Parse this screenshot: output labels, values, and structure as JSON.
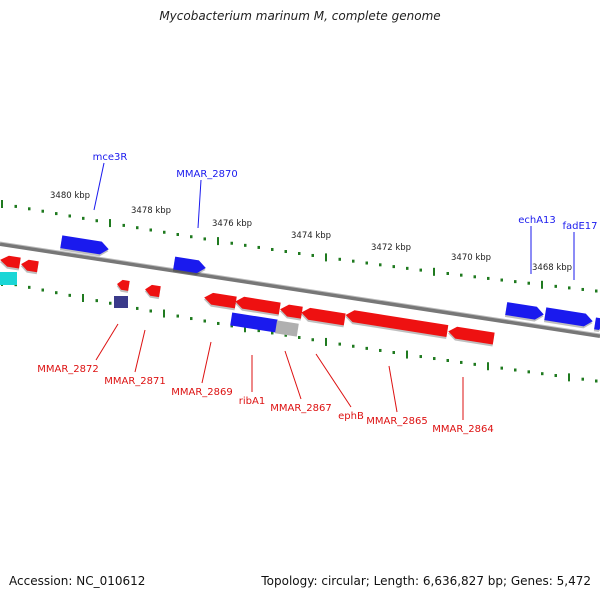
{
  "header": {
    "title": "Mycobacterium marinum M, complete genome"
  },
  "footer": {
    "accession": "Accession: NC_010612",
    "topology": "Topology: circular; Length: 6,636,827 bp; Genes: 5,472"
  },
  "colors": {
    "forward": "#1a1aee",
    "reverse": "#ee1111",
    "backbone": "#777777",
    "tick": "#1f7a1f",
    "label_forward": "#1a1aee",
    "label_reverse": "#dd1111"
  },
  "ruler": {
    "labels": [
      "3480 kbp",
      "3478 kbp",
      "3476 kbp",
      "3474 kbp",
      "3472 kbp",
      "3470 kbp",
      "3468 kbp"
    ]
  },
  "genes_forward": [
    "mce3R",
    "MMAR_2870",
    "echA13",
    "fadE17"
  ],
  "genes_reverse": [
    "MMAR_2872",
    "MMAR_2871",
    "MMAR_2869",
    "ribA1",
    "MMAR_2867",
    "ephB",
    "MMAR_2865",
    "MMAR_2864"
  ]
}
